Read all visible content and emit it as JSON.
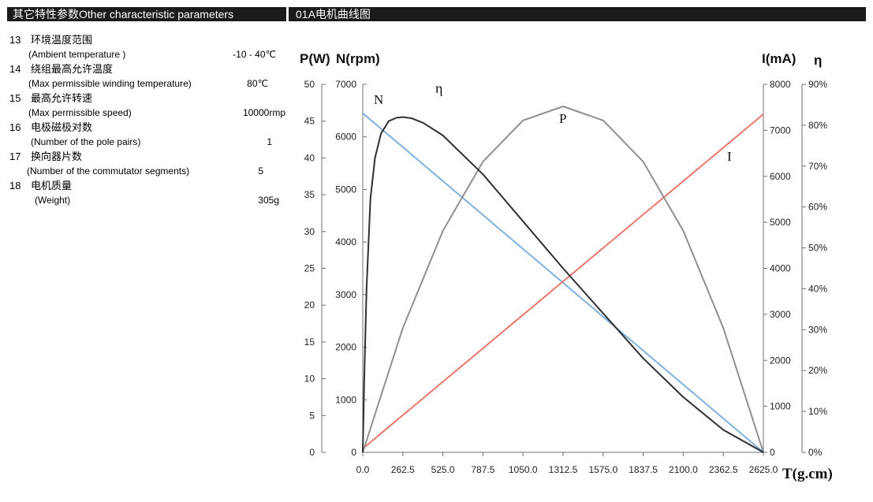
{
  "header": {
    "left_title": "其它特性参数Other characteristic parameters",
    "right_title": "01A电机曲线图"
  },
  "params": [
    {
      "num": "13",
      "zh": "环境温度范围",
      "en": "(Ambient  temperature )",
      "value": "-10 - 40℃"
    },
    {
      "num": "14",
      "zh": "绕组最高允许温度",
      "en": "(Max permissible winding temperature)",
      "value": "80℃"
    },
    {
      "num": "15",
      "zh": "最高允许转速",
      "en": "(Max permissible speed)",
      "value": "10000rmp"
    },
    {
      "num": "16",
      "zh": "电极磁极对数",
      "en": "(Number of  the pole pairs)",
      "value": "1"
    },
    {
      "num": "17",
      "zh": "换向器片数",
      "en": "(Number of the  commutator  segments)",
      "value": "5"
    },
    {
      "num": "18",
      "zh": "电机质量",
      "en": "(Weight)",
      "value": "305g"
    }
  ],
  "chart_data": {
    "type": "line",
    "title": "01A电机曲线图",
    "xlabel": "T(g.cm)",
    "x_ticks": [
      "0.0",
      "262.5",
      "525.0",
      "787.5",
      "1050.0",
      "1312.5",
      "1575.0",
      "1837.5",
      "2100.0",
      "2362.5",
      "2625.0"
    ],
    "xlim": [
      0,
      2625
    ],
    "axes": {
      "P": {
        "label": "P(W)",
        "ticks": [
          "0",
          "5",
          "10",
          "15",
          "20",
          "25",
          "30",
          "35",
          "40",
          "45",
          "50"
        ],
        "lim": [
          0,
          50
        ]
      },
      "N": {
        "label": "N(rpm)",
        "ticks": [
          "0",
          "1000",
          "2000",
          "3000",
          "4000",
          "5000",
          "6000",
          "7000"
        ],
        "lim": [
          0,
          7000
        ]
      },
      "I": {
        "label": "I(mA)",
        "ticks": [
          "0",
          "1000",
          "2000",
          "3000",
          "4000",
          "5000",
          "6000",
          "7000",
          "8000"
        ],
        "lim": [
          0,
          8000
        ]
      },
      "eta": {
        "label": "η",
        "ticks": [
          "0%",
          "10%",
          "20%",
          "30%",
          "40%",
          "50%",
          "60%",
          "70%",
          "80%",
          "90%"
        ],
        "lim": [
          0,
          90
        ]
      }
    },
    "series": [
      {
        "name": "N",
        "label": "N",
        "axis": "N",
        "color": "#7fb2df",
        "x": [
          0,
          2625
        ],
        "values": [
          6450,
          0
        ]
      },
      {
        "name": "I",
        "label": "I",
        "axis": "I",
        "color": "#e8786e",
        "x": [
          0,
          2625
        ],
        "values": [
          80,
          7350
        ]
      },
      {
        "name": "P",
        "label": "P",
        "axis": "P",
        "color": "#8f8f8f",
        "x": [
          0,
          262.5,
          525,
          787.5,
          1050,
          1312.5,
          1575,
          1837.5,
          2100,
          2362.5,
          2625
        ],
        "values": [
          0,
          16.9,
          30.1,
          39.5,
          45.1,
          47.0,
          45.1,
          39.5,
          30.1,
          16.9,
          0
        ]
      },
      {
        "name": "eta",
        "label": "η",
        "axis": "eta",
        "color": "#303030",
        "x": [
          0,
          10,
          25,
          50,
          80,
          120,
          170,
          220,
          262.5,
          320,
          400,
          525,
          787.5,
          1050,
          1312.5,
          1575,
          1837.5,
          2100,
          2362.5,
          2625
        ],
        "values": [
          0,
          18,
          40,
          62,
          72,
          78,
          81,
          81.8,
          82,
          81.7,
          80.5,
          77.5,
          68,
          56.5,
          45,
          34,
          23,
          13.5,
          5.5,
          0
        ]
      }
    ]
  }
}
